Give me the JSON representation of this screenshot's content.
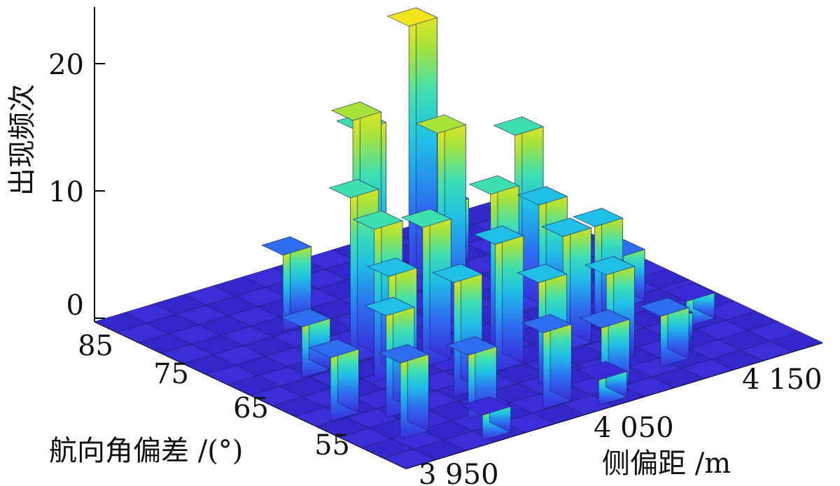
{
  "chart_data": {
    "type": "bar3d",
    "title": "",
    "zlabel": "出现频次",
    "ylabel": "航向角偏差 /(°)",
    "xlabel": "侧偏距 /m",
    "z_ticks": [
      "0",
      "10",
      "20"
    ],
    "y_ticks": [
      "55",
      "65",
      "75",
      "85"
    ],
    "x_ticks": [
      "3 950",
      "4 050",
      "4 150"
    ],
    "z_range": [
      0,
      24
    ],
    "y_range": [
      50,
      87
    ],
    "x_range": [
      3940,
      4155
    ],
    "grid_size": [
      14,
      14
    ],
    "colormap": [
      "#3a2bd9",
      "#2d6ff0",
      "#1fbfe6",
      "#3fe0b0",
      "#a8e33a",
      "#f2e51b"
    ],
    "bars": [
      {
        "x": 4010,
        "y": 72,
        "z": 18
      },
      {
        "x": 4030,
        "y": 76,
        "z": 15
      },
      {
        "x": 4065,
        "y": 78,
        "z": 21
      },
      {
        "x": 4045,
        "y": 70,
        "z": 16
      },
      {
        "x": 4085,
        "y": 70,
        "z": 14
      },
      {
        "x": 4000,
        "y": 70,
        "z": 13
      },
      {
        "x": 3995,
        "y": 66,
        "z": 12
      },
      {
        "x": 4020,
        "y": 66,
        "z": 11
      },
      {
        "x": 4055,
        "y": 66,
        "z": 12
      },
      {
        "x": 4080,
        "y": 66,
        "z": 10
      },
      {
        "x": 3985,
        "y": 62,
        "z": 10
      },
      {
        "x": 4040,
        "y": 62,
        "z": 10
      },
      {
        "x": 4075,
        "y": 62,
        "z": 9
      },
      {
        "x": 4100,
        "y": 64,
        "z": 8
      },
      {
        "x": 3975,
        "y": 60,
        "z": 8
      },
      {
        "x": 4010,
        "y": 60,
        "z": 9
      },
      {
        "x": 4045,
        "y": 58,
        "z": 8
      },
      {
        "x": 4080,
        "y": 58,
        "z": 7
      },
      {
        "x": 3965,
        "y": 56,
        "z": 6
      },
      {
        "x": 4000,
        "y": 56,
        "z": 5
      },
      {
        "x": 4030,
        "y": 54,
        "z": 6
      },
      {
        "x": 4060,
        "y": 54,
        "z": 5
      },
      {
        "x": 4095,
        "y": 55,
        "z": 4
      },
      {
        "x": 4120,
        "y": 66,
        "z": 4
      },
      {
        "x": 3955,
        "y": 62,
        "z": 5
      },
      {
        "x": 3975,
        "y": 70,
        "z": 4
      },
      {
        "x": 4000,
        "y": 78,
        "z": 6
      },
      {
        "x": 4090,
        "y": 80,
        "z": 5
      },
      {
        "x": 4130,
        "y": 60,
        "z": 2
      },
      {
        "x": 3990,
        "y": 52,
        "z": 2
      },
      {
        "x": 4050,
        "y": 52,
        "z": 2
      },
      {
        "x": 4110,
        "y": 58,
        "z": 2
      }
    ]
  }
}
